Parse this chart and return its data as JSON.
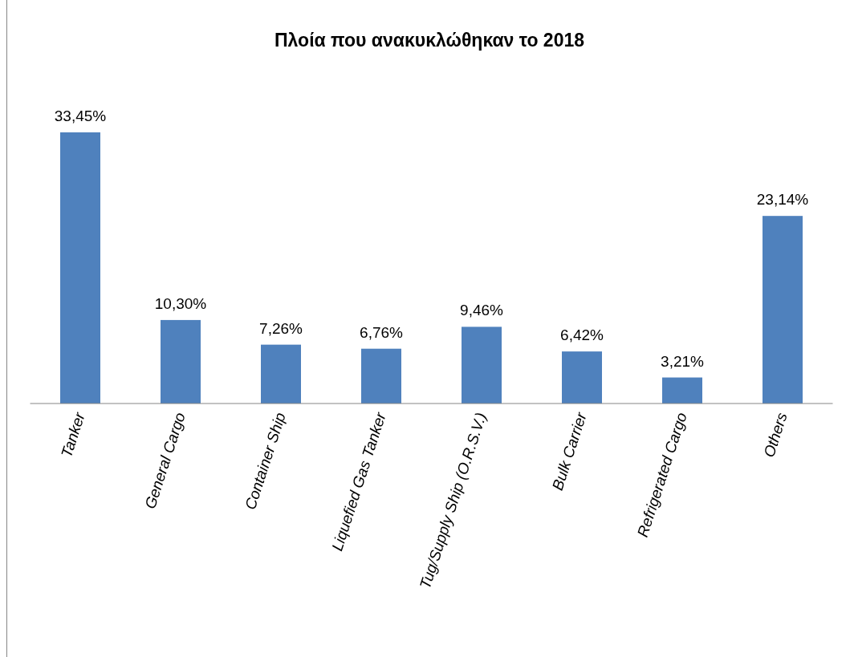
{
  "chart_data": {
    "type": "bar",
    "title": "Πλοία που ανακυκλώθηκαν το 2018",
    "categories": [
      "Tanker",
      "General Cargo",
      "Container Ship",
      "Liquefied Gas Tanker",
      "Tug/Supply Ship (O.R.S.V.)",
      "Bulk Carrier",
      "Refrigerated Cargo",
      "Others"
    ],
    "values": [
      33.45,
      10.3,
      7.26,
      6.76,
      9.46,
      6.42,
      3.21,
      23.14
    ],
    "value_labels": [
      "33,45%",
      "10,30%",
      "7,26%",
      "6,76%",
      "9,46%",
      "6,42%",
      "3,21%",
      "23,14%"
    ],
    "color": "#4f81bd",
    "grid": false
  }
}
